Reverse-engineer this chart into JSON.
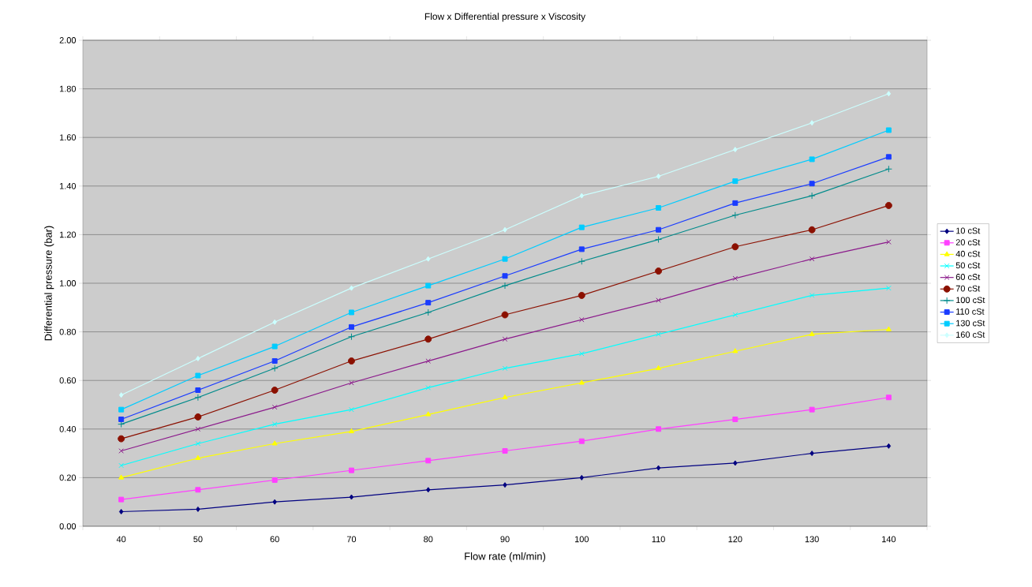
{
  "chart_data": {
    "type": "line",
    "title": "Flow x Differential pressure x Viscosity",
    "xlabel": "Flow rate (ml/min)",
    "ylabel": "Differential pressure (bar)",
    "categories": [
      "40",
      "50",
      "60",
      "70",
      "80",
      "90",
      "100",
      "110",
      "120",
      "130",
      "140"
    ],
    "ylim": [
      0,
      2
    ],
    "yticks": [
      {
        "value": 0,
        "label": "0.00"
      },
      {
        "value": 0.2,
        "label": "0.20"
      },
      {
        "value": 0.4,
        "label": "0.40"
      },
      {
        "value": 0.6,
        "label": "0.60"
      },
      {
        "value": 0.8,
        "label": "0.80"
      },
      {
        "value": 1.0,
        "label": "1.00"
      },
      {
        "value": 1.2,
        "label": "1.20"
      },
      {
        "value": 1.4,
        "label": "1.40"
      },
      {
        "value": 1.6,
        "label": "1.60"
      },
      {
        "value": 1.8,
        "label": "1.80"
      },
      {
        "value": 2.0,
        "label": "2.00"
      }
    ],
    "grid": "y",
    "legend": "right",
    "series": [
      {
        "name": "10 cSt",
        "color": "#000080",
        "marker": "diamond",
        "values": [
          0.06,
          0.07,
          0.1,
          0.12,
          0.15,
          0.17,
          0.2,
          0.24,
          0.26,
          0.3,
          0.33
        ]
      },
      {
        "name": "20 cSt",
        "color": "#ff40ff",
        "marker": "square",
        "values": [
          0.11,
          0.15,
          0.19,
          0.23,
          0.27,
          0.31,
          0.35,
          0.4,
          0.44,
          0.48,
          0.53
        ]
      },
      {
        "name": "40 cSt",
        "color": "#ffff00",
        "marker": "triangle",
        "values": [
          0.2,
          0.28,
          0.34,
          0.39,
          0.46,
          0.53,
          0.59,
          0.65,
          0.72,
          0.79,
          0.81
        ]
      },
      {
        "name": "50 cSt",
        "color": "#00ffff",
        "marker": "cross",
        "values": [
          0.25,
          0.34,
          0.42,
          0.48,
          0.57,
          0.65,
          0.71,
          0.79,
          0.87,
          0.95,
          0.98
        ]
      },
      {
        "name": "60 cSt",
        "color": "#8b1a8b",
        "marker": "cross",
        "values": [
          0.31,
          0.4,
          0.49,
          0.59,
          0.68,
          0.77,
          0.85,
          0.93,
          1.02,
          1.1,
          1.17
        ]
      },
      {
        "name": "70 cSt",
        "color": "#8b1000",
        "marker": "circle",
        "values": [
          0.36,
          0.45,
          0.56,
          0.68,
          0.77,
          0.87,
          0.95,
          1.05,
          1.15,
          1.22,
          1.32
        ]
      },
      {
        "name": "100 cSt",
        "color": "#008b8b",
        "marker": "plus",
        "values": [
          0.42,
          0.53,
          0.65,
          0.78,
          0.88,
          0.99,
          1.09,
          1.18,
          1.28,
          1.36,
          1.47
        ]
      },
      {
        "name": "110 cSt",
        "color": "#1a3cff",
        "marker": "square",
        "values": [
          0.44,
          0.56,
          0.68,
          0.82,
          0.92,
          1.03,
          1.14,
          1.22,
          1.33,
          1.41,
          1.52
        ]
      },
      {
        "name": "130 cSt",
        "color": "#00ccff",
        "marker": "square",
        "values": [
          0.48,
          0.62,
          0.74,
          0.88,
          0.99,
          1.1,
          1.23,
          1.31,
          1.42,
          1.51,
          1.63
        ]
      },
      {
        "name": "160 cSt",
        "color": "#ccffff",
        "marker": "diamond",
        "values": [
          0.54,
          0.69,
          0.84,
          0.98,
          1.1,
          1.22,
          1.36,
          1.44,
          1.55,
          1.66,
          1.78
        ]
      }
    ]
  }
}
